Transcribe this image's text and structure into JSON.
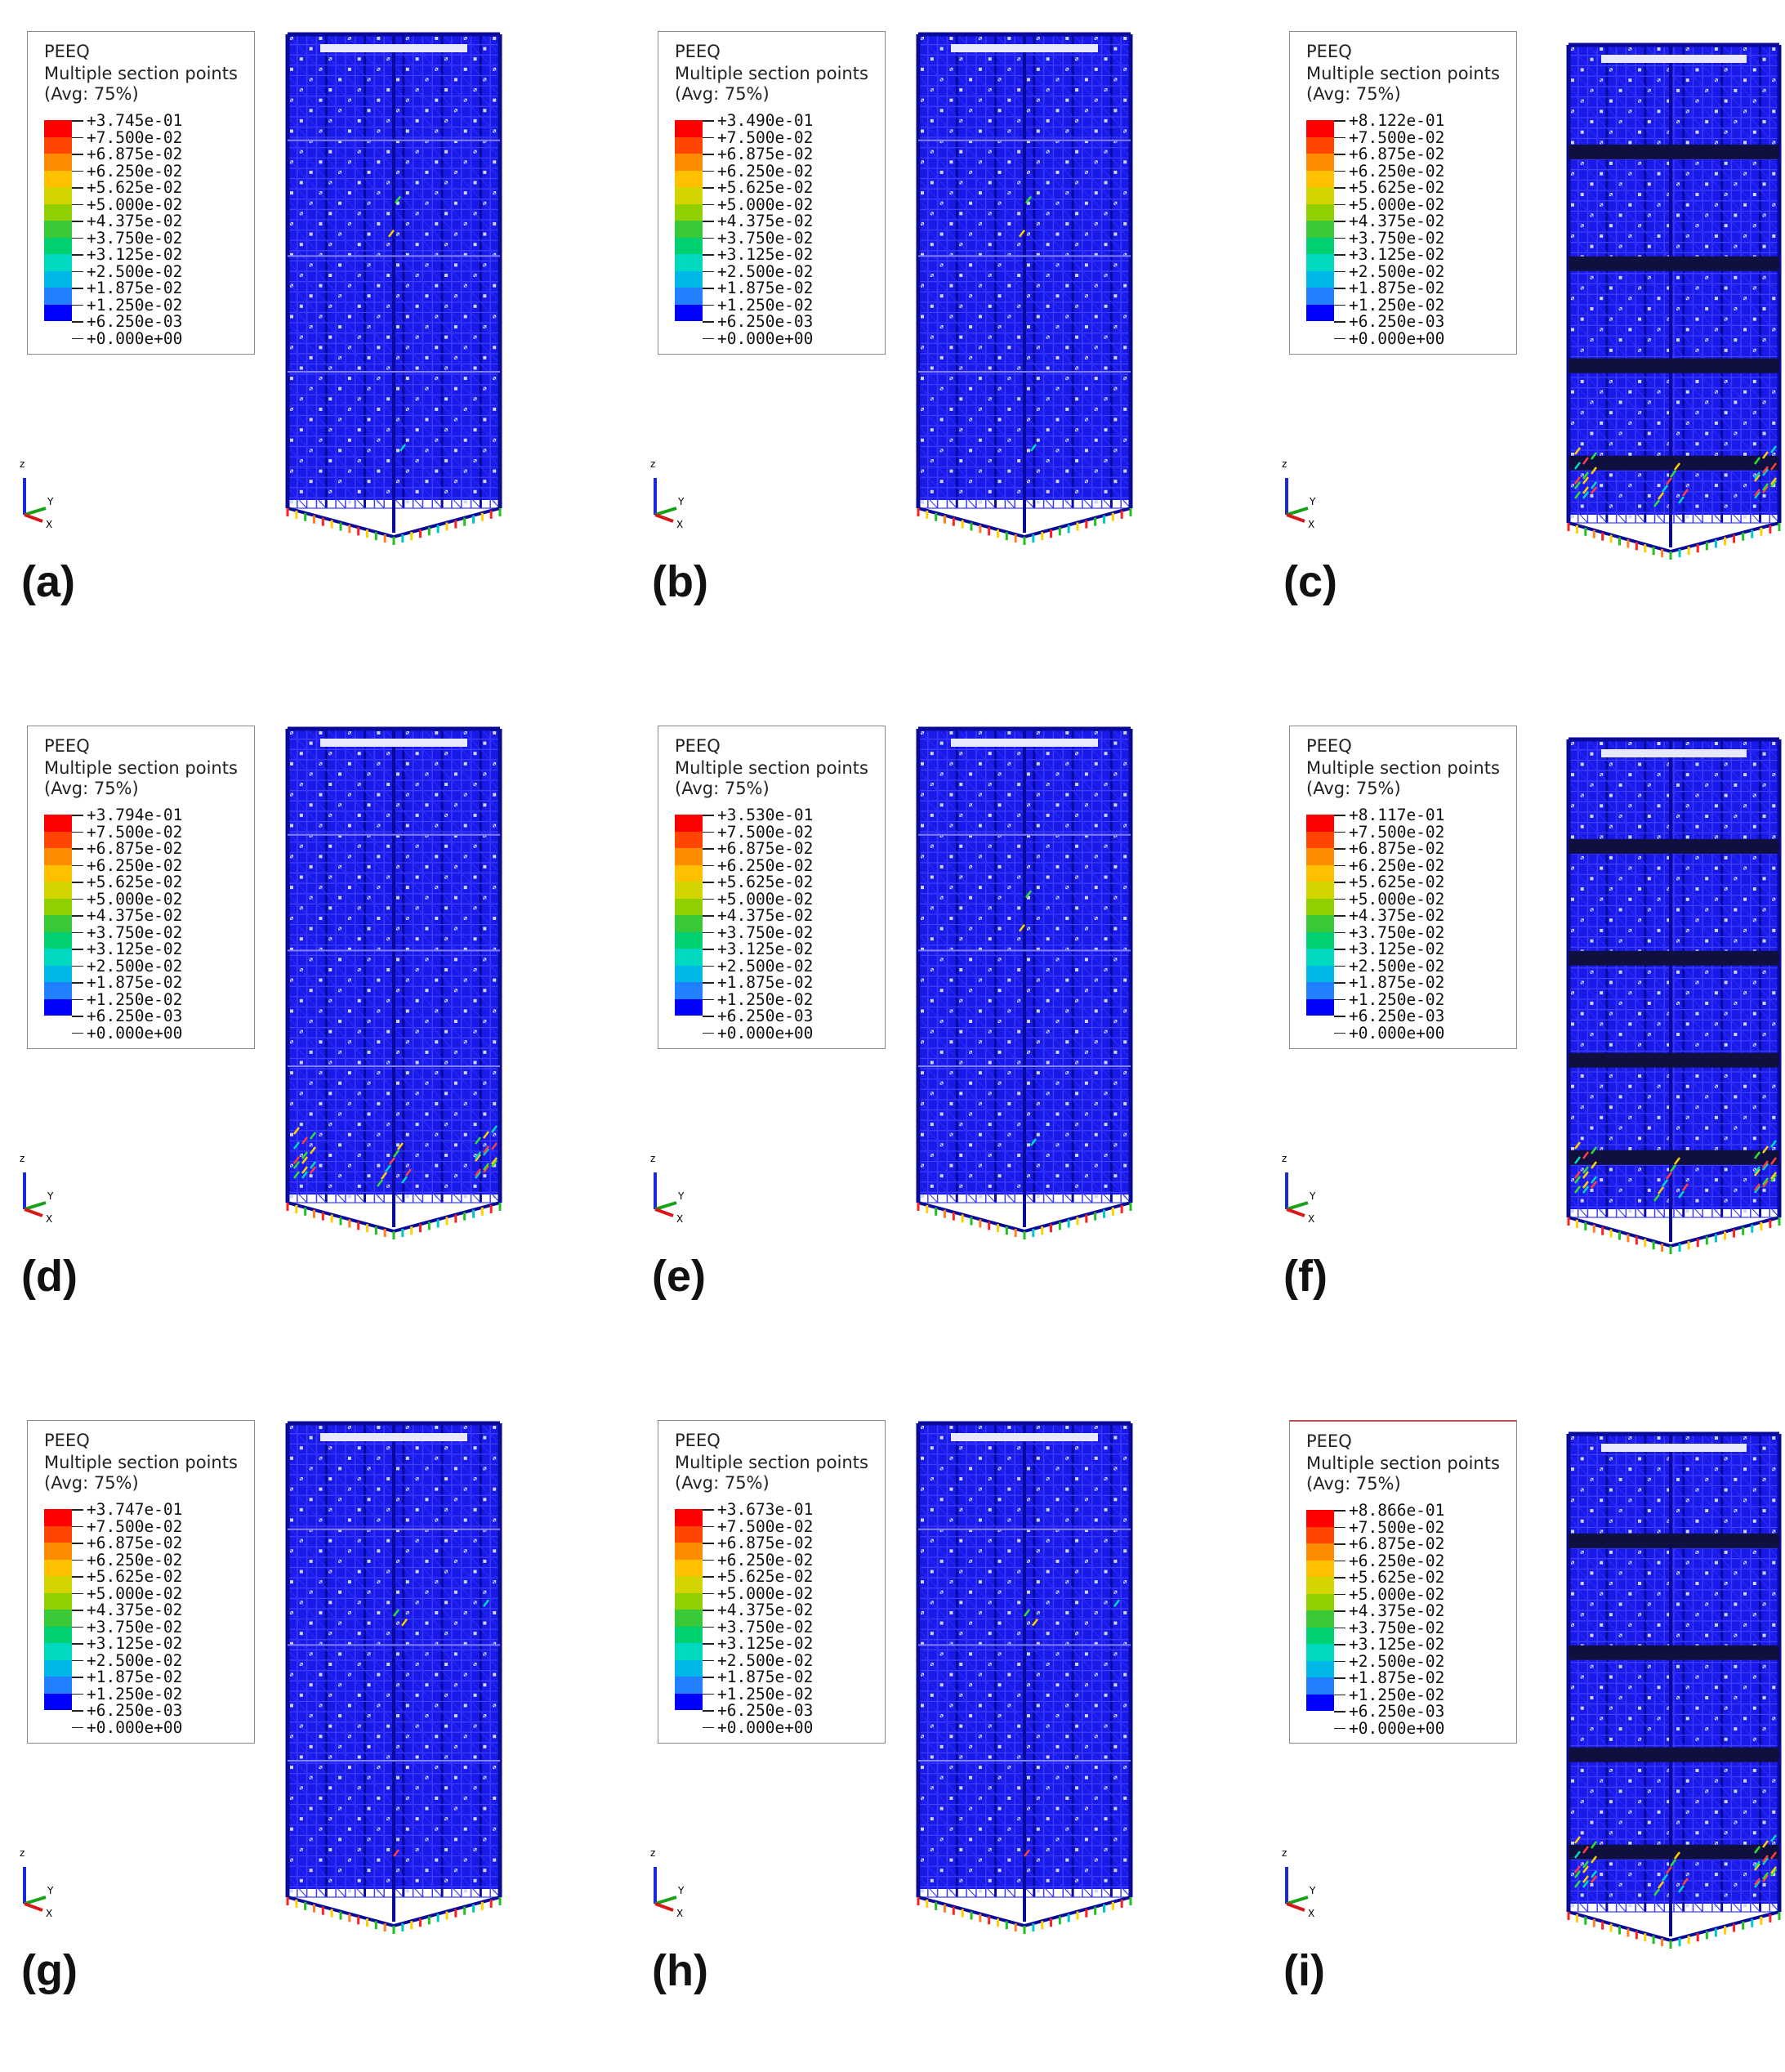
{
  "figure": {
    "legend_common": {
      "variable": "PEEQ",
      "subtitle": "Multiple section points",
      "avg": "(Avg: 75%)",
      "tick_values": [
        "+7.500e-02",
        "+6.875e-02",
        "+6.250e-02",
        "+5.625e-02",
        "+5.000e-02",
        "+4.375e-02",
        "+3.750e-02",
        "+3.125e-02",
        "+2.500e-02",
        "+1.875e-02",
        "+1.250e-02",
        "+6.250e-03",
        "+0.000e+00"
      ],
      "scale_colors": [
        "#ff0000",
        "#ff4500",
        "#ff8c00",
        "#ffc000",
        "#d4d400",
        "#90d000",
        "#38c838",
        "#00d070",
        "#00d8c0",
        "#00b8e8",
        "#2080ff",
        "#0000ff"
      ]
    },
    "triad_labels": {
      "z": "z",
      "y": "Y",
      "x": "X"
    },
    "panels": [
      {
        "label": "(a)",
        "max_value": "+3.745e-01",
        "model": "A",
        "hot_spots": "low"
      },
      {
        "label": "(b)",
        "max_value": "+3.490e-01",
        "model": "A",
        "hot_spots": "low"
      },
      {
        "label": "(c)",
        "max_value": "+8.122e-01",
        "model": "B",
        "hot_spots": "base"
      },
      {
        "label": "(d)",
        "max_value": "+3.794e-01",
        "model": "A",
        "hot_spots": "base"
      },
      {
        "label": "(e)",
        "max_value": "+3.530e-01",
        "model": "A",
        "hot_spots": "low"
      },
      {
        "label": "(f)",
        "max_value": "+8.117e-01",
        "model": "B",
        "hot_spots": "base"
      },
      {
        "label": "(g)",
        "max_value": "+3.747e-01",
        "model": "A",
        "hot_spots": "mid"
      },
      {
        "label": "(h)",
        "max_value": "+3.673e-01",
        "model": "A",
        "hot_spots": "mid"
      },
      {
        "label": "(i)",
        "max_value": "+8.866e-01",
        "model": "B",
        "hot_spots": "base",
        "legend_accent": "#c05050"
      }
    ]
  }
}
